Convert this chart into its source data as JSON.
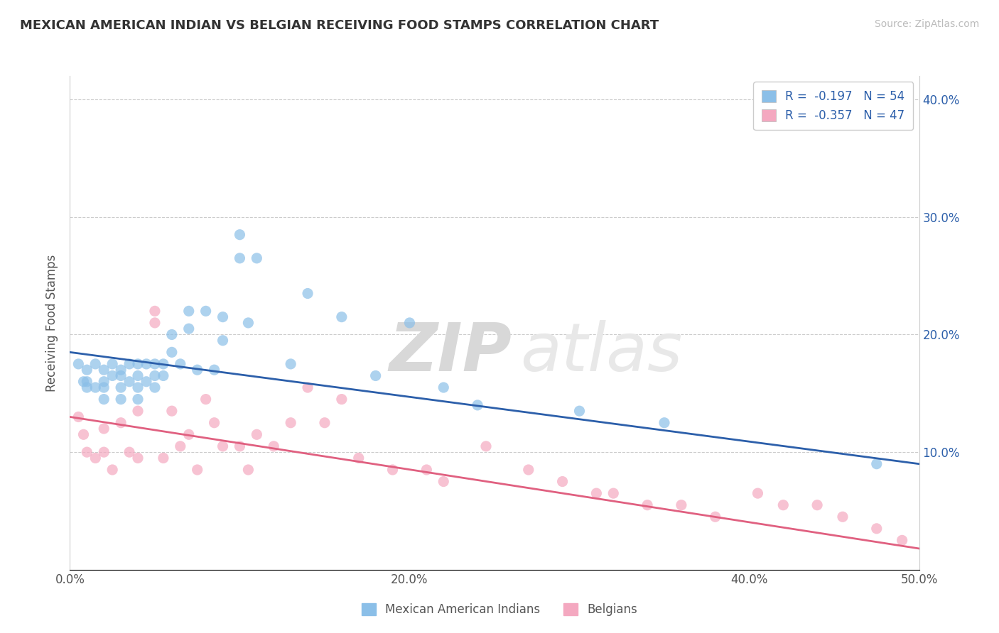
{
  "title": "MEXICAN AMERICAN INDIAN VS BELGIAN RECEIVING FOOD STAMPS CORRELATION CHART",
  "source": "Source: ZipAtlas.com",
  "ylabel": "Receiving Food Stamps",
  "xlim": [
    0.0,
    0.5
  ],
  "ylim": [
    0.0,
    0.42
  ],
  "yticks": [
    0.1,
    0.2,
    0.3,
    0.4
  ],
  "ytick_labels": [
    "10.0%",
    "20.0%",
    "30.0%",
    "40.0%"
  ],
  "xticks": [
    0.0,
    0.1,
    0.2,
    0.3,
    0.4,
    0.5
  ],
  "xtick_labels": [
    "0.0%",
    "",
    "20.0%",
    "",
    "40.0%",
    "50.0%"
  ],
  "blue_R": -0.197,
  "blue_N": 54,
  "pink_R": -0.357,
  "pink_N": 47,
  "blue_color": "#8bbfe8",
  "pink_color": "#f4a8c0",
  "blue_line_color": "#2c5faa",
  "pink_line_color": "#e06080",
  "legend_label_blue": "Mexican American Indians",
  "legend_label_pink": "Belgians",
  "watermark_zip": "ZIP",
  "watermark_atlas": "atlas",
  "blue_x": [
    0.005,
    0.008,
    0.01,
    0.01,
    0.01,
    0.015,
    0.015,
    0.02,
    0.02,
    0.02,
    0.02,
    0.025,
    0.025,
    0.03,
    0.03,
    0.03,
    0.03,
    0.035,
    0.035,
    0.04,
    0.04,
    0.04,
    0.04,
    0.045,
    0.045,
    0.05,
    0.05,
    0.05,
    0.055,
    0.055,
    0.06,
    0.06,
    0.065,
    0.07,
    0.07,
    0.075,
    0.08,
    0.085,
    0.09,
    0.09,
    0.1,
    0.1,
    0.105,
    0.11,
    0.13,
    0.14,
    0.16,
    0.18,
    0.2,
    0.22,
    0.24,
    0.3,
    0.35,
    0.475
  ],
  "blue_y": [
    0.175,
    0.16,
    0.17,
    0.16,
    0.155,
    0.175,
    0.155,
    0.17,
    0.16,
    0.155,
    0.145,
    0.175,
    0.165,
    0.17,
    0.165,
    0.155,
    0.145,
    0.175,
    0.16,
    0.175,
    0.165,
    0.155,
    0.145,
    0.175,
    0.16,
    0.175,
    0.165,
    0.155,
    0.175,
    0.165,
    0.2,
    0.185,
    0.175,
    0.22,
    0.205,
    0.17,
    0.22,
    0.17,
    0.215,
    0.195,
    0.285,
    0.265,
    0.21,
    0.265,
    0.175,
    0.235,
    0.215,
    0.165,
    0.21,
    0.155,
    0.14,
    0.135,
    0.125,
    0.09
  ],
  "pink_x": [
    0.005,
    0.008,
    0.01,
    0.015,
    0.02,
    0.02,
    0.025,
    0.03,
    0.035,
    0.04,
    0.04,
    0.05,
    0.05,
    0.055,
    0.06,
    0.065,
    0.07,
    0.075,
    0.08,
    0.085,
    0.09,
    0.1,
    0.105,
    0.11,
    0.12,
    0.13,
    0.14,
    0.15,
    0.16,
    0.17,
    0.19,
    0.21,
    0.22,
    0.245,
    0.27,
    0.29,
    0.31,
    0.32,
    0.34,
    0.36,
    0.38,
    0.405,
    0.42,
    0.44,
    0.455,
    0.475,
    0.49
  ],
  "pink_y": [
    0.13,
    0.115,
    0.1,
    0.095,
    0.12,
    0.1,
    0.085,
    0.125,
    0.1,
    0.135,
    0.095,
    0.22,
    0.21,
    0.095,
    0.135,
    0.105,
    0.115,
    0.085,
    0.145,
    0.125,
    0.105,
    0.105,
    0.085,
    0.115,
    0.105,
    0.125,
    0.155,
    0.125,
    0.145,
    0.095,
    0.085,
    0.085,
    0.075,
    0.105,
    0.085,
    0.075,
    0.065,
    0.065,
    0.055,
    0.055,
    0.045,
    0.065,
    0.055,
    0.055,
    0.045,
    0.035,
    0.025
  ]
}
